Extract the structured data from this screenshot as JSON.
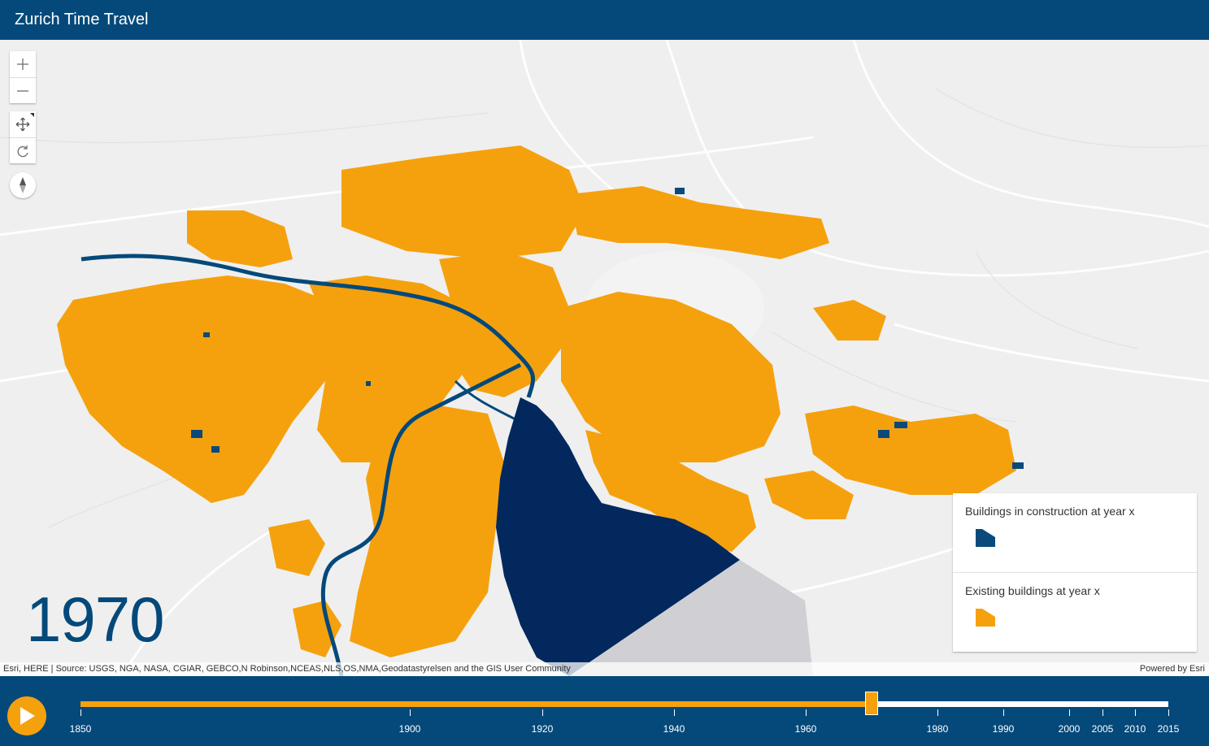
{
  "header": {
    "title": "Zurich Time Travel"
  },
  "map": {
    "year_label": "1970",
    "attribution": "Esri, HERE | Source: USGS, NGA, NASA, CGIAR, GEBCO,N Robinson,NCEAS,NLS,OS,NMA,Geodatastyrelsen and the GIS User Community",
    "powered_by": "Powered by Esri",
    "controls": {
      "zoom_in": "+",
      "zoom_out": "—",
      "pan_icon": "move-icon",
      "rotate_icon": "rotate-icon",
      "compass_icon": "compass-icon"
    }
  },
  "legend": {
    "items": [
      {
        "label": "Buildings in construction at year x",
        "color": "#0a4a7b"
      },
      {
        "label": "Existing buildings at year x",
        "color": "#f5a10e"
      }
    ]
  },
  "timeline": {
    "start": 1850,
    "end": 2015,
    "current": 1970,
    "ticks": [
      1850,
      1900,
      1920,
      1940,
      1960,
      1980,
      1990,
      2000,
      2005,
      2010,
      2015
    ],
    "play_icon": "play-icon"
  },
  "colors": {
    "header": "#04497a",
    "accent": "#f5a10e",
    "lake": "#03285e",
    "river": "#04497a"
  }
}
